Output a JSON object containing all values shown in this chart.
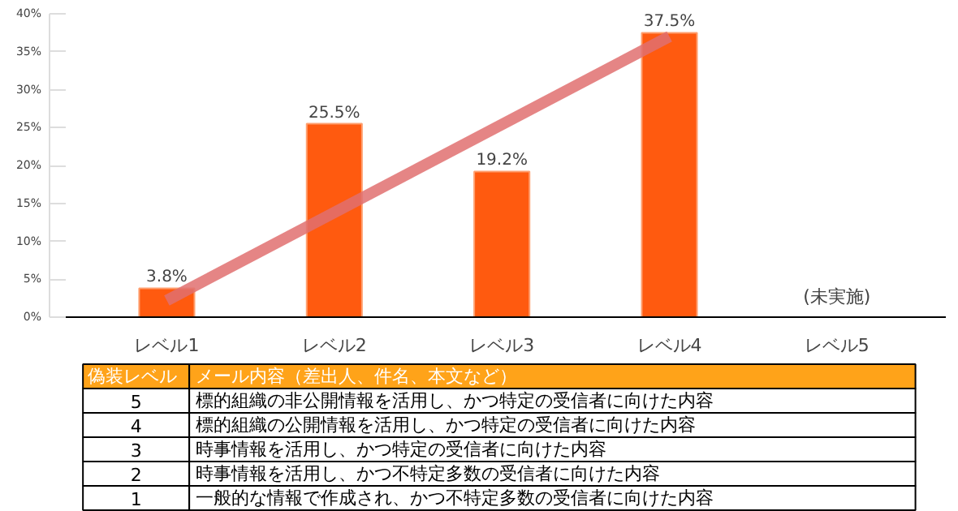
{
  "chart_data": {
    "type": "bar",
    "categories": [
      "レベル1",
      "レベル2",
      "レベル3",
      "レベル4",
      "レベル5"
    ],
    "series": [
      {
        "color": "#ff5a0f",
        "values": [
          3.8,
          25.5,
          19.2,
          37.5,
          null
        ],
        "value_labels": [
          "3.8%",
          "25.5%",
          "19.2%",
          "37.5%",
          null
        ]
      },
      {
        "type": "line",
        "color": "#e07070",
        "x": [
          "レベル1",
          "レベル4"
        ],
        "values": [
          2.2,
          37.0
        ]
      }
    ],
    "ylim": [
      0,
      40
    ],
    "yticks": [
      {
        "value": 0,
        "label": "0%"
      },
      {
        "value": 5,
        "label": "5%"
      },
      {
        "value": 10,
        "label": "10%"
      },
      {
        "value": 15,
        "label": "15%"
      },
      {
        "value": 20,
        "label": "20%"
      },
      {
        "value": 25,
        "label": "25%"
      },
      {
        "value": 30,
        "label": "30%"
      },
      {
        "value": 35,
        "label": "35%"
      },
      {
        "value": 40,
        "label": "40%"
      }
    ],
    "grid": false,
    "annotations": [
      "(未実施)",
      "偽装レベル",
      "メール内容（差出人、件名、本文など）",
      "5",
      "標的組織の非公開情報を活用し、かつ特定の受信者に向けた内容",
      "4",
      "標的組織の公開情報を活用し、かつ特定の受信者に向けた内容",
      "3",
      "時事情報を活用し、かつ特定の受信者に向けた内容",
      "2",
      "時事情報を活用し、かつ不特定多数の受信者に向けた内容",
      "1",
      "一般的な情報で作成され、かつ不特定多数の受信者に向けた内容"
    ]
  }
}
